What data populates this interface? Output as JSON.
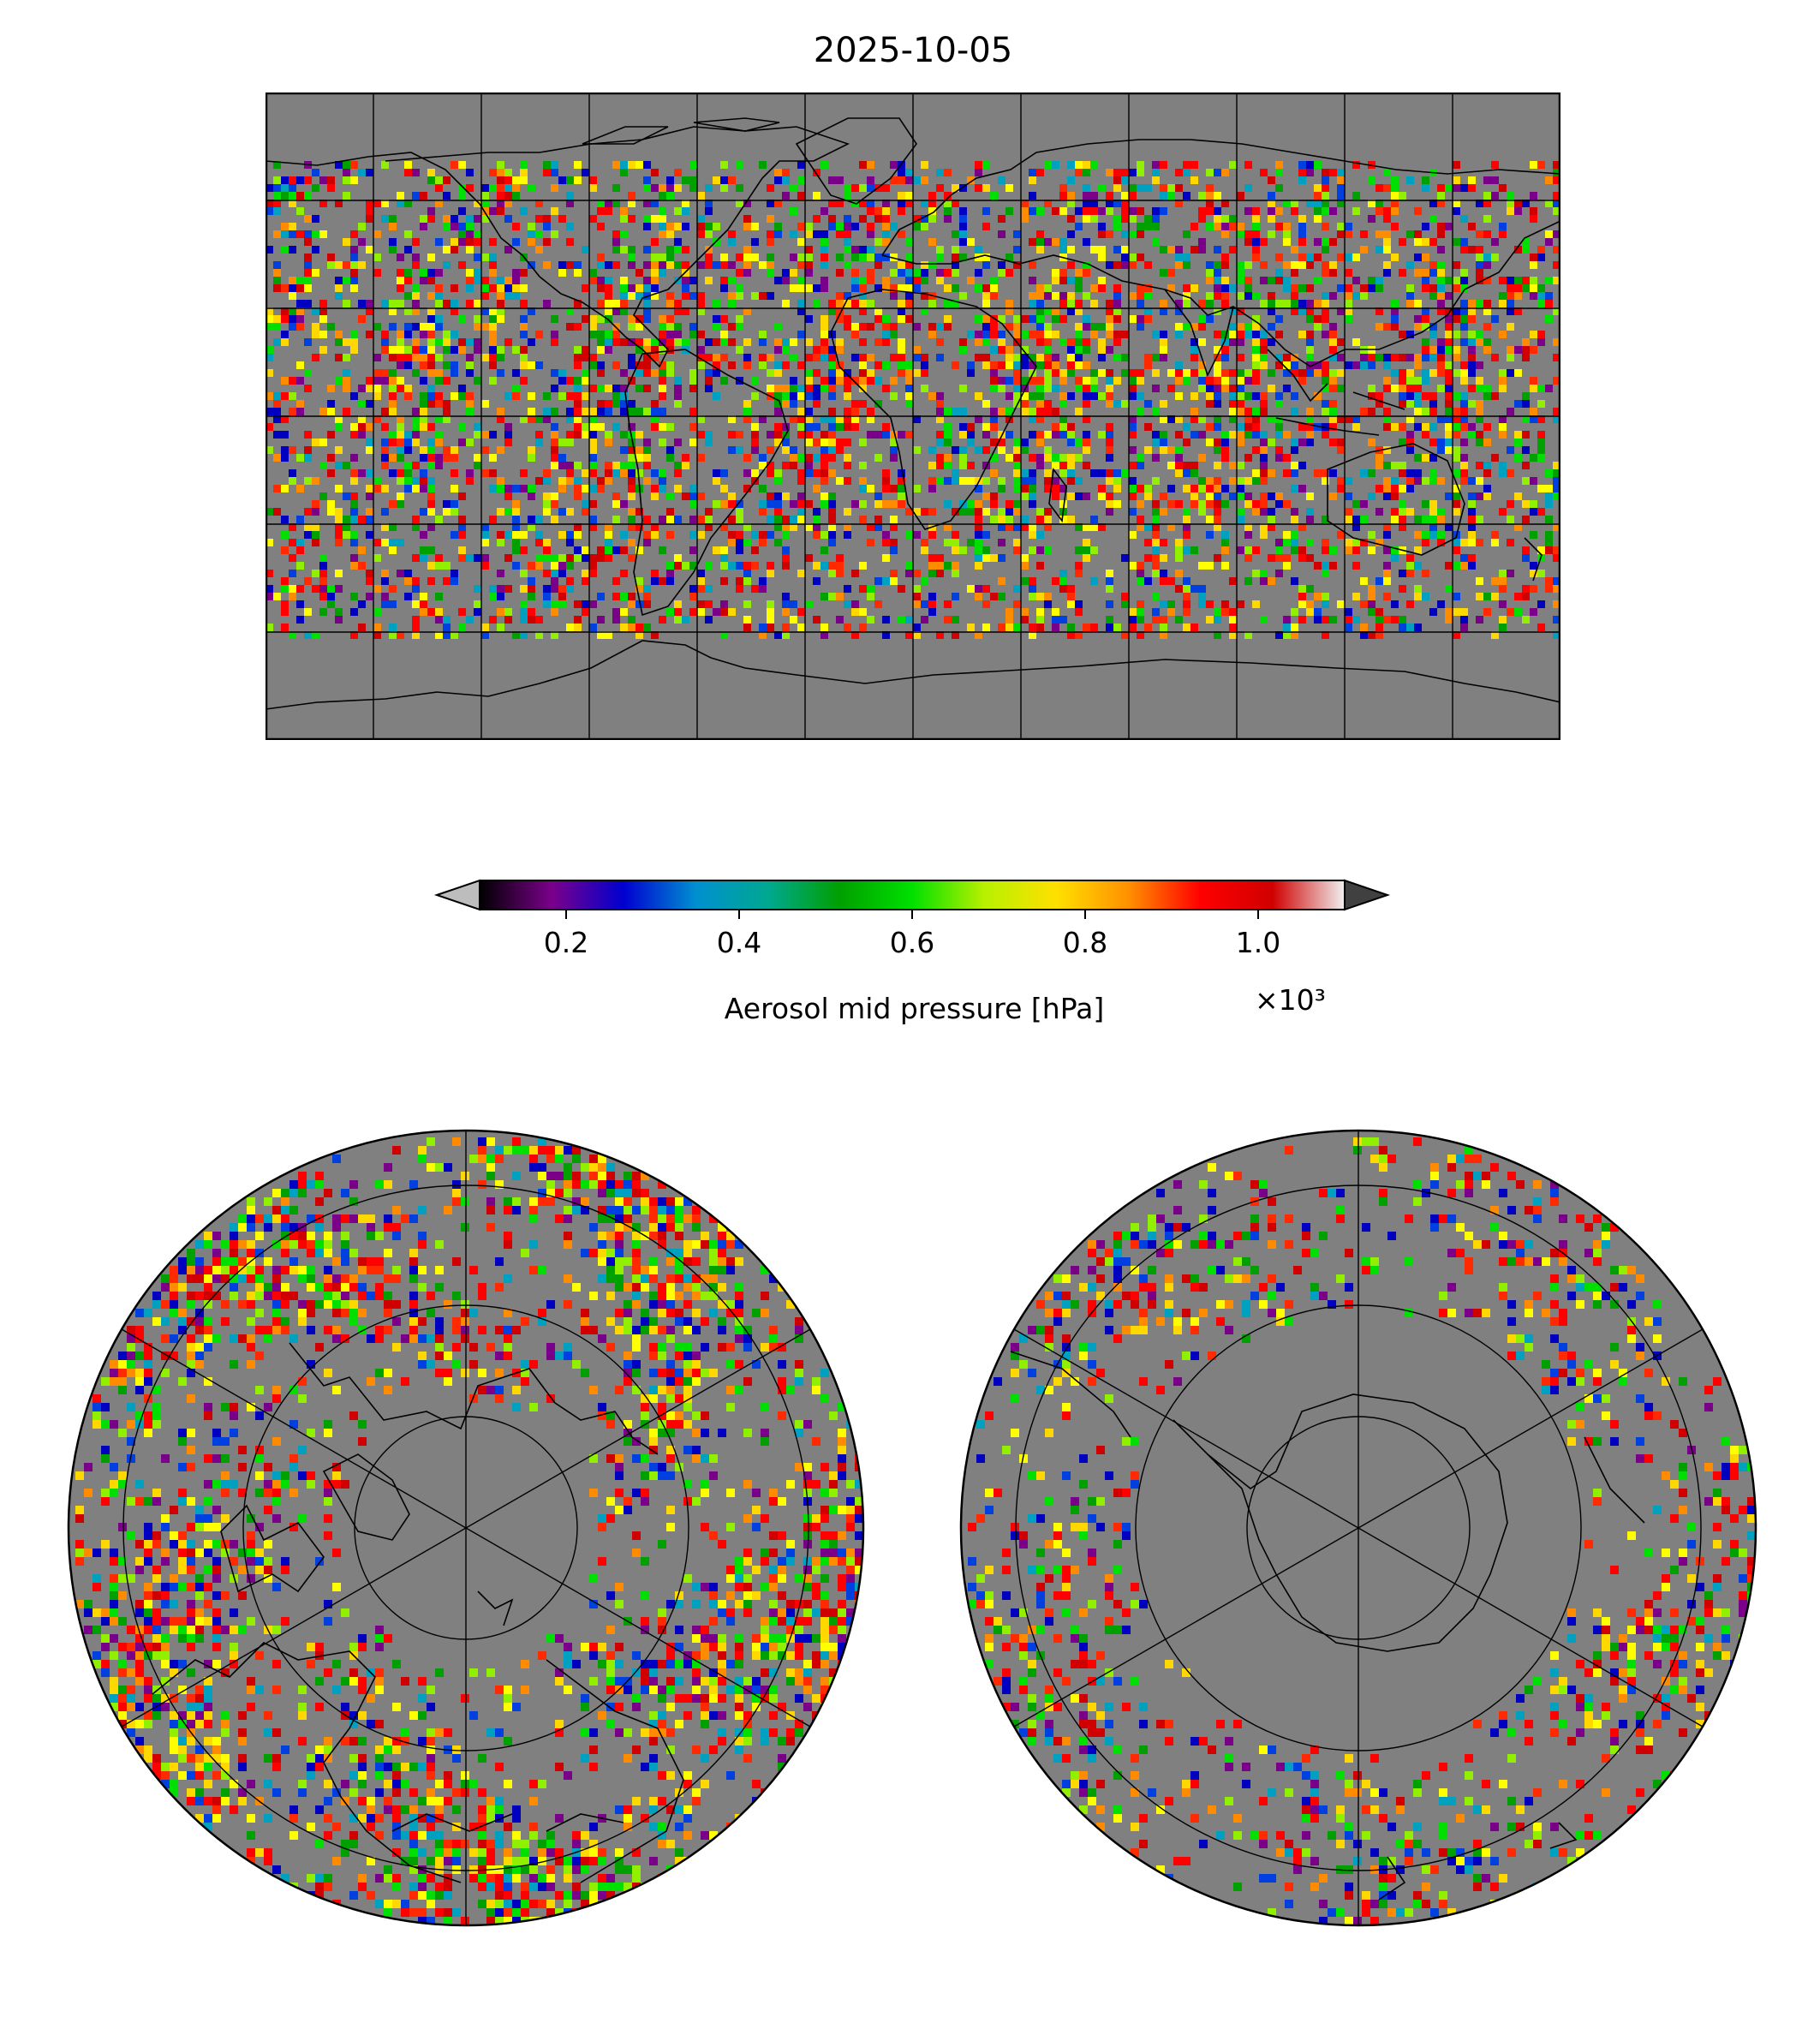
{
  "title": "2025-10-05",
  "colorbar": {
    "label": "Aerosol mid pressure [hPa]",
    "scale_label": "×10³",
    "range": [
      0.1,
      1.1
    ],
    "ticks": [
      "0.2",
      "0.4",
      "0.6",
      "0.8",
      "1.0"
    ],
    "tick_values": [
      0.2,
      0.4,
      0.6,
      0.8,
      1.0
    ],
    "colormap_stops": [
      "#000000",
      "#7a008a",
      "#0000d0",
      "#0090d0",
      "#00a890",
      "#00a000",
      "#00e000",
      "#b8f000",
      "#ffe000",
      "#ff9000",
      "#ff0000",
      "#d00000",
      "#f0f0f0"
    ],
    "under_color": "#bdbdbd",
    "over_color": "#404040"
  },
  "map_style": {
    "background": "#808080",
    "coastline": "#000000",
    "graticule": "#000000"
  }
}
